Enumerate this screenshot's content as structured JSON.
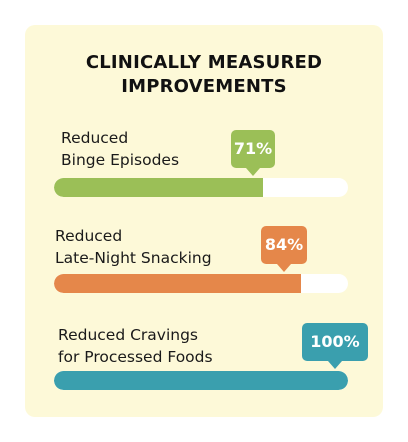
{
  "card": {
    "title_line1": "CLINICALLY MEASURED",
    "title_line2": "IMPROVEMENTS"
  },
  "metrics": [
    {
      "label_line1": "Reduced",
      "label_line2": "Binge Episodes",
      "value_text": "71%",
      "value": 0.71,
      "color": "#9bbf57"
    },
    {
      "label_line1": "Reduced",
      "label_line2": "Late-Night Snacking",
      "value_text": "84%",
      "value": 0.84,
      "color": "#e5874a"
    },
    {
      "label_line1": "Reduced Cravings",
      "label_line2": "for Processed Foods",
      "value_text": "100%",
      "value": 1.0,
      "color": "#3a9fae"
    }
  ],
  "colors": {
    "card_background": "#fdf9d8",
    "track": "#ffffff",
    "title_text": "#111111"
  }
}
